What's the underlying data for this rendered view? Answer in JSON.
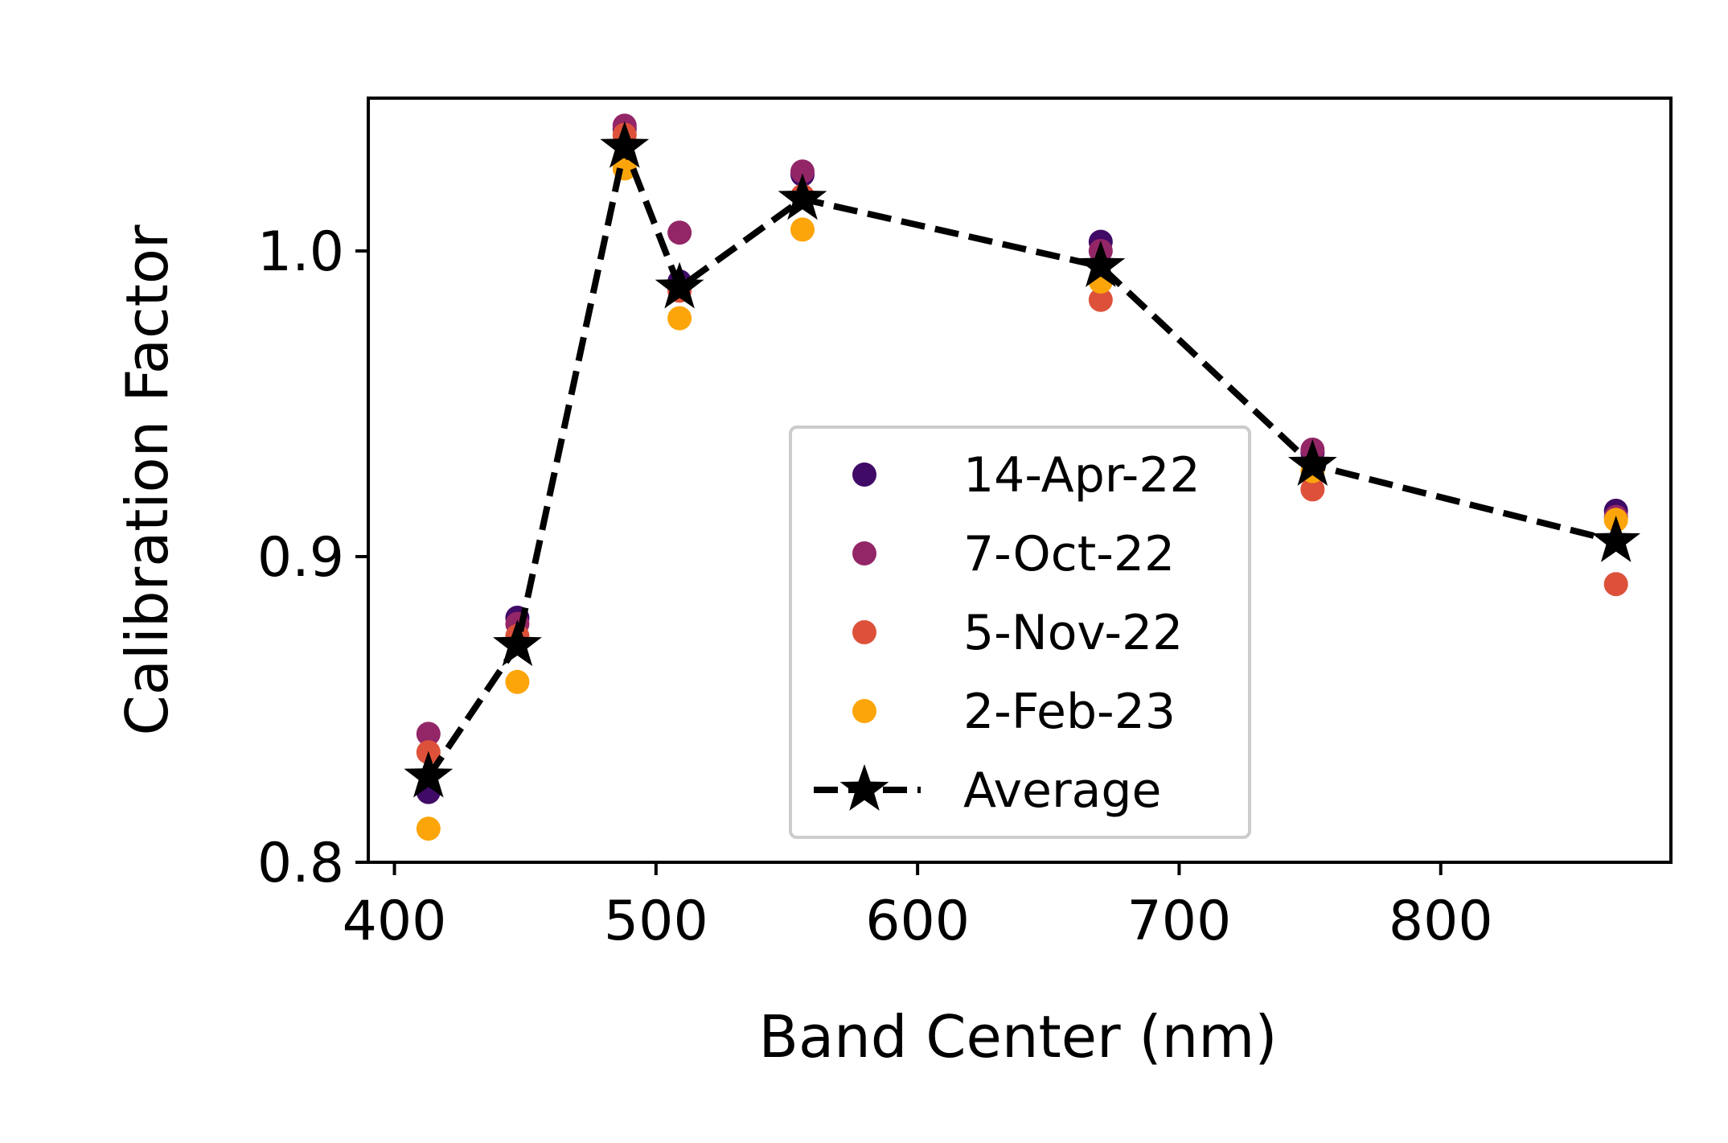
{
  "chart_data": {
    "type": "scatter",
    "xlabel": "Band Center (nm)",
    "ylabel": "Calibration Factor",
    "xlim": [
      390,
      888
    ],
    "ylim": [
      0.8,
      1.05
    ],
    "xticks": [
      400,
      500,
      600,
      700,
      800
    ],
    "xtick_labels": [
      "400",
      "500",
      "600",
      "700",
      "800"
    ],
    "yticks": [
      0.8,
      0.9,
      1.0
    ],
    "ytick_labels": [
      "0.8",
      "0.9",
      "1.0"
    ],
    "grid": false,
    "legend_position": "lower center-right",
    "x": [
      413,
      447,
      488,
      509,
      556,
      670,
      751,
      867
    ],
    "series": [
      {
        "name": "14-Apr-22",
        "kind": "scatter",
        "color": "#400a67",
        "y": [
          0.823,
          0.88,
          1.04,
          0.99,
          1.025,
          1.003,
          0.934,
          0.915
        ]
      },
      {
        "name": "7-Oct-22",
        "kind": "scatter",
        "color": "#932667",
        "y": [
          0.842,
          0.878,
          1.041,
          1.006,
          1.026,
          1.0,
          0.935,
          0.913
        ]
      },
      {
        "name": "5-Nov-22",
        "kind": "scatter",
        "color": "#dd513a",
        "y": [
          0.836,
          0.874,
          1.038,
          0.987,
          1.018,
          0.984,
          0.922,
          0.891
        ]
      },
      {
        "name": "2-Feb-23",
        "kind": "scatter",
        "color": "#fca50a",
        "y": [
          0.811,
          0.859,
          1.027,
          0.978,
          1.007,
          0.99,
          0.928,
          0.912
        ]
      },
      {
        "name": "Average",
        "kind": "line-star-dashed",
        "color": "#000000",
        "y": [
          0.828,
          0.871,
          1.034,
          0.988,
          1.017,
          0.995,
          0.93,
          0.905
        ]
      }
    ]
  }
}
